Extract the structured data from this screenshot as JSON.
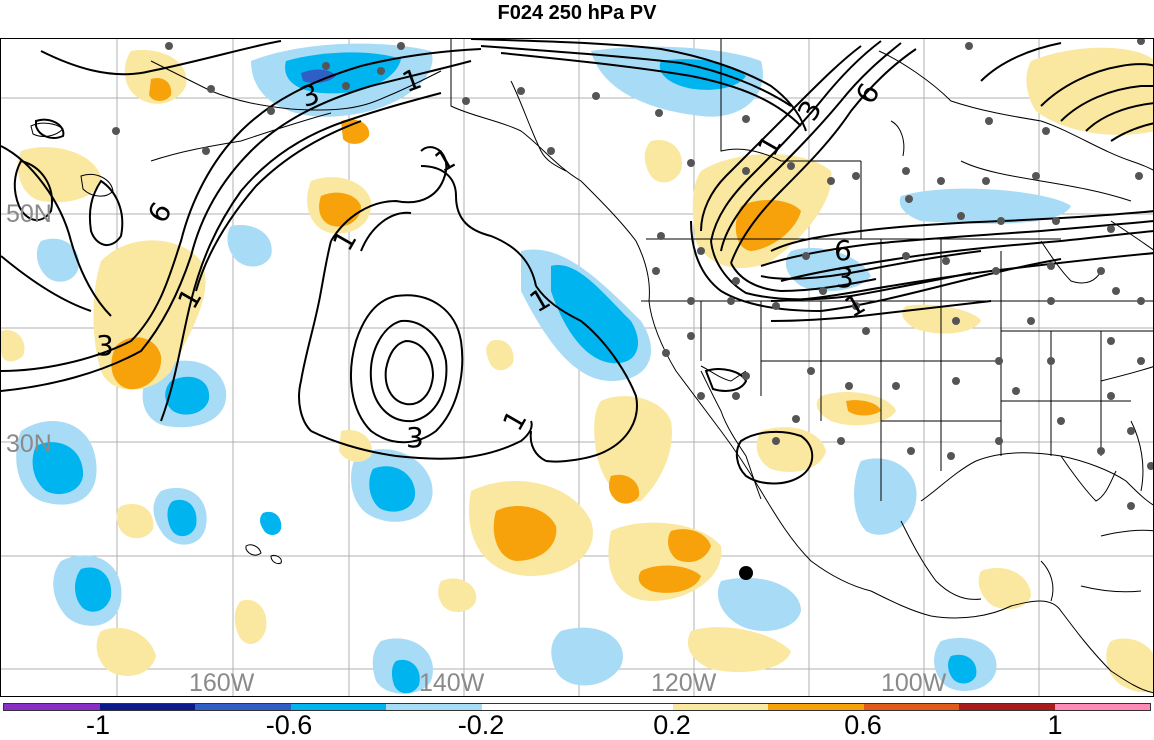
{
  "title": "F024 250 hPa PV",
  "lat_labels": [
    "50N",
    "30N"
  ],
  "lon_labels": [
    "160W",
    "140W",
    "120W",
    "100W"
  ],
  "contour_labels": [
    "1",
    "3",
    "6"
  ],
  "colorbar": {
    "colors": [
      "#8a2ec8",
      "#0a1a8c",
      "#2f5fc6",
      "#00b4ef",
      "#a8dcf6",
      "#ffffff",
      "#ffffff",
      "#fae8a0",
      "#f7a20a",
      "#e05a1a",
      "#a81c1c",
      "#ff8ab8"
    ],
    "tick_labels": [
      "-1",
      "-0.6",
      "-0.2",
      "0.2",
      "0.6",
      "1"
    ]
  },
  "fill_colors": {
    "neg_light": "#a8dcf6",
    "neg_mid": "#00b4ef",
    "neg_dark": "#2f5fc6",
    "pos_light": "#fae8a0",
    "pos_mid": "#f7a20a"
  }
}
